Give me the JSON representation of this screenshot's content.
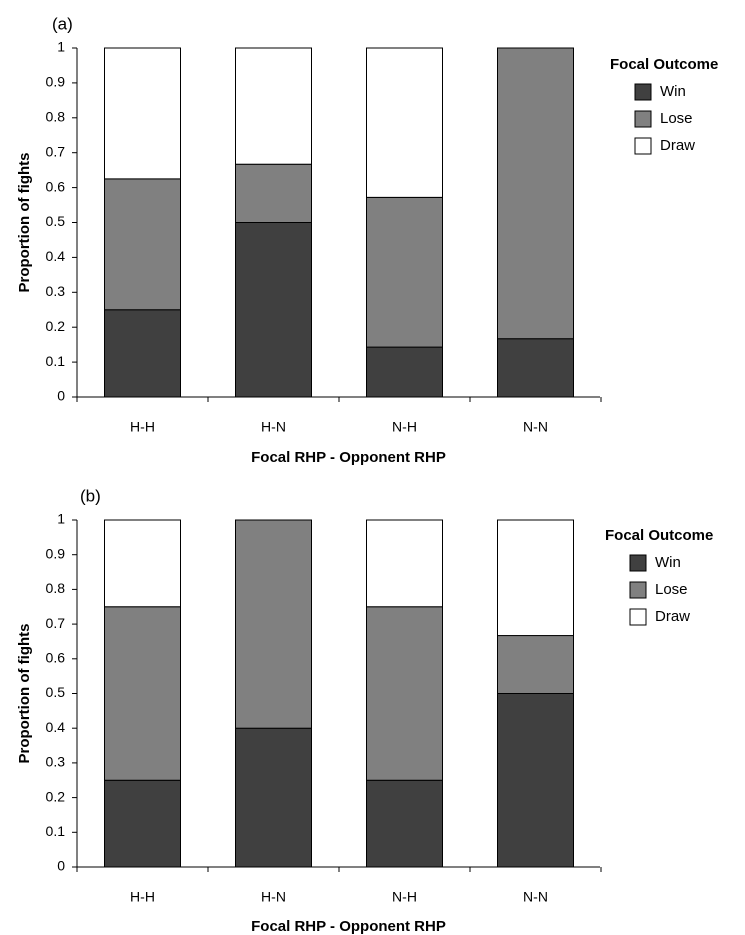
{
  "chart_data": [
    {
      "type": "bar",
      "stacked": true,
      "panel_label": "(a)",
      "categories": [
        "H-H",
        "H-N",
        "N-H",
        "N-N"
      ],
      "series": [
        {
          "name": "Win",
          "values": [
            0.25,
            0.5,
            0.143,
            0.167
          ],
          "color": "#404040"
        },
        {
          "name": "Lose",
          "values": [
            0.375,
            0.167,
            0.429,
            0.833
          ],
          "color": "#808080"
        },
        {
          "name": "Draw",
          "values": [
            0.375,
            0.333,
            0.428,
            0.0
          ],
          "color": "#ffffff"
        }
      ],
      "xlabel": "Focal RHP - Opponent RHP",
      "ylabel": "Proportion of fights",
      "ylim": [
        0,
        1
      ],
      "yticks": [
        "0",
        "0.1",
        "0.2",
        "0.3",
        "0.4",
        "0.5",
        "0.6",
        "0.7",
        "0.8",
        "0.9",
        "1"
      ],
      "legend_title": "Focal Outcome",
      "legend_position": "top-right",
      "grid": false
    },
    {
      "type": "bar",
      "stacked": true,
      "panel_label": "(b)",
      "categories": [
        "H-H",
        "H-N",
        "N-H",
        "N-N"
      ],
      "series": [
        {
          "name": "Win",
          "values": [
            0.25,
            0.4,
            0.25,
            0.5
          ],
          "color": "#404040"
        },
        {
          "name": "Lose",
          "values": [
            0.5,
            0.6,
            0.5,
            0.167
          ],
          "color": "#808080"
        },
        {
          "name": "Draw",
          "values": [
            0.25,
            0.0,
            0.25,
            0.333
          ],
          "color": "#ffffff"
        }
      ],
      "xlabel": "Focal RHP - Opponent RHP",
      "ylabel": "Proportion of fights",
      "ylim": [
        0,
        1
      ],
      "yticks": [
        "0",
        "0.1",
        "0.2",
        "0.3",
        "0.4",
        "0.5",
        "0.6",
        "0.7",
        "0.8",
        "0.9",
        "1"
      ],
      "legend_title": "Focal Outcome",
      "legend_position": "top-right",
      "grid": false
    }
  ]
}
